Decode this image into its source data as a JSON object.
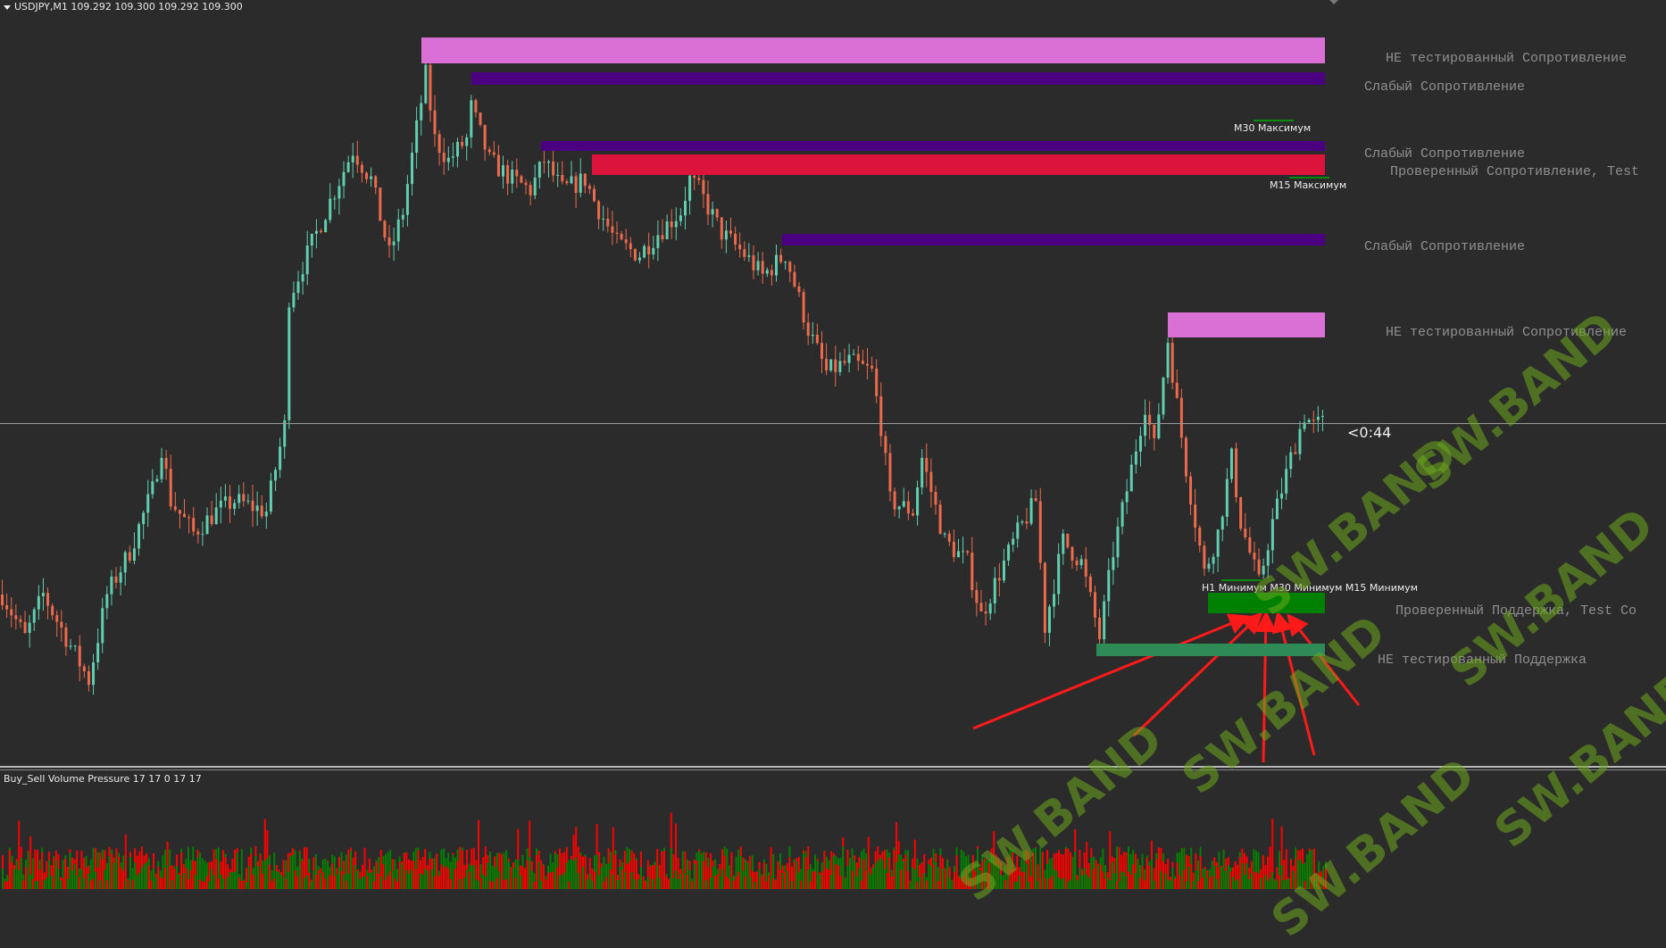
{
  "window": {
    "title": "USDJPY,M1  109.292 109.300 109.292 109.300",
    "countdown": "<0:44"
  },
  "zones": [
    {
      "label": "НЕ тестированный Сопротивление",
      "color": "#da70d6"
    },
    {
      "label": "Слабый Сопротивление",
      "color": "#4b0082"
    },
    {
      "label": "Слабый Сопротивление",
      "color": "#4b0082"
    },
    {
      "label": "Проверенный Сопротивление, Test",
      "color": "#dc143c"
    },
    {
      "label": "Слабый Сопротивление",
      "color": "#4b0082"
    },
    {
      "label": "НЕ тестированный Сопротивление",
      "color": "#da70d6"
    },
    {
      "label": "Проверенный Поддержка, Test Co",
      "color": "#008000"
    },
    {
      "label": "НЕ тестированный Поддержка",
      "color": "#2e8b57"
    }
  ],
  "markers": {
    "m30_high": "M30 Максимум",
    "m15_high": "M15 Максимум",
    "lows": "H1 Минимум M30 Минимум M15 Минимум"
  },
  "indicator": {
    "title": "Buy_Sell Volume Pressure 17 17 0 17 17",
    "buy_color": "#008000",
    "sell_color": "#ff0000"
  },
  "watermark": "SW.BAND",
  "chart_data": {
    "type": "candlestick",
    "symbol": "USDJPY",
    "timeframe": "M1",
    "last_price": 109.3,
    "bull_color": "#5fcfb0",
    "bear_color": "#ee6a4c",
    "grid": false,
    "price_path": [
      [
        0,
        109.236
      ],
      [
        5,
        109.22
      ],
      [
        9,
        109.236
      ],
      [
        14,
        109.22
      ],
      [
        19,
        109.204
      ],
      [
        23,
        109.236
      ],
      [
        28,
        109.252
      ],
      [
        33,
        109.275
      ],
      [
        35,
        109.291
      ],
      [
        37,
        109.271
      ],
      [
        42,
        109.259
      ],
      [
        47,
        109.267
      ],
      [
        51,
        109.271
      ],
      [
        58,
        109.267
      ],
      [
        62,
        109.299
      ],
      [
        63,
        109.347
      ],
      [
        67,
        109.363
      ],
      [
        72,
        109.383
      ],
      [
        77,
        109.402
      ],
      [
        81,
        109.391
      ],
      [
        85,
        109.363
      ],
      [
        88,
        109.379
      ],
      [
        91,
        109.41
      ],
      [
        93,
        109.43
      ],
      [
        95,
        109.406
      ],
      [
        98,
        109.398
      ],
      [
        102,
        109.406
      ],
      [
        103,
        109.418
      ],
      [
        107,
        109.398
      ],
      [
        112,
        109.391
      ],
      [
        116,
        109.387
      ],
      [
        119,
        109.398
      ],
      [
        123,
        109.387
      ],
      [
        128,
        109.391
      ],
      [
        130,
        109.383
      ],
      [
        135,
        109.367
      ],
      [
        140,
        109.363
      ],
      [
        144,
        109.371
      ],
      [
        149,
        109.379
      ],
      [
        151,
        109.391
      ],
      [
        153,
        109.387
      ],
      [
        158,
        109.371
      ],
      [
        163,
        109.363
      ],
      [
        167,
        109.355
      ],
      [
        172,
        109.363
      ],
      [
        177,
        109.335
      ],
      [
        181,
        109.319
      ],
      [
        186,
        109.323
      ],
      [
        191,
        109.319
      ],
      [
        193,
        109.299
      ],
      [
        195,
        109.271
      ],
      [
        200,
        109.267
      ],
      [
        202,
        109.287
      ],
      [
        207,
        109.256
      ],
      [
        212,
        109.248
      ],
      [
        215,
        109.228
      ],
      [
        219,
        109.244
      ],
      [
        223,
        109.259
      ],
      [
        227,
        109.271
      ],
      [
        229,
        109.224
      ],
      [
        233,
        109.256
      ],
      [
        237,
        109.248
      ],
      [
        241,
        109.22
      ],
      [
        244,
        109.252
      ],
      [
        247,
        109.275
      ],
      [
        251,
        109.307
      ],
      [
        253,
        109.291
      ],
      [
        256,
        109.331
      ],
      [
        258,
        109.307
      ],
      [
        260,
        109.283
      ],
      [
        264,
        109.244
      ],
      [
        267,
        109.259
      ],
      [
        270,
        109.287
      ],
      [
        272,
        109.263
      ],
      [
        276,
        109.24
      ],
      [
        279,
        109.263
      ],
      [
        283,
        109.287
      ],
      [
        286,
        109.303
      ],
      [
        288,
        109.299
      ],
      [
        290,
        109.3
      ]
    ]
  }
}
